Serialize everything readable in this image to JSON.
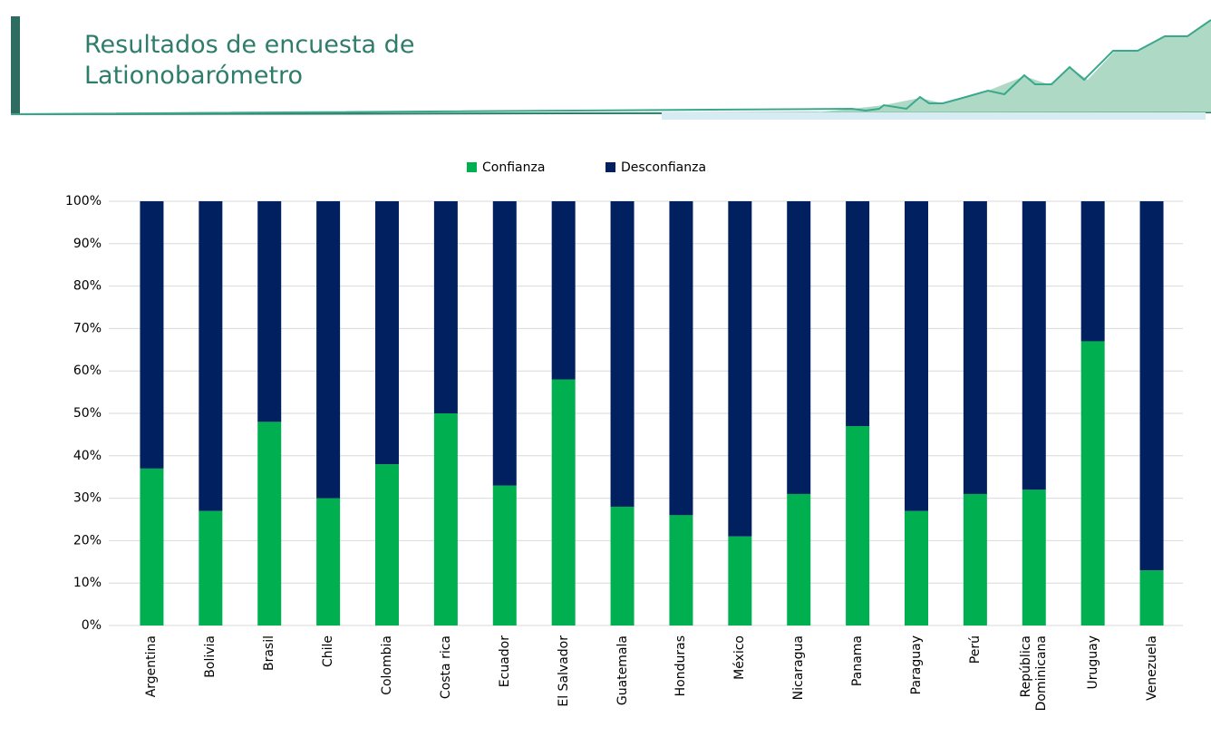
{
  "chart_data": {
    "type": "bar",
    "stacked": true,
    "title": "Resultados de encuesta de Lationobarómetro",
    "categories": [
      "Argentina",
      "Bolivia",
      "Brasil",
      "Chile",
      "Colombia",
      "Costa rica",
      "Ecuador",
      "El Salvador",
      "Guatemala",
      "Honduras",
      "México",
      "Nicaragua",
      "Panama",
      "Paraguay",
      "Perú",
      "República Dominicana",
      "Uruguay",
      "Venezuela"
    ],
    "series": [
      {
        "name": "Confianza",
        "color": "#00b050",
        "values": [
          37,
          27,
          48,
          30,
          38,
          50,
          33,
          58,
          28,
          26,
          21,
          31,
          47,
          27,
          31,
          32,
          67,
          13
        ]
      },
      {
        "name": "Desconfianza",
        "color": "#002060",
        "values": [
          63,
          73,
          52,
          70,
          62,
          50,
          67,
          42,
          72,
          74,
          79,
          69,
          53,
          73,
          69,
          68,
          33,
          87
        ]
      }
    ],
    "ylim": [
      0,
      100
    ],
    "yticks": [
      {
        "value": 0,
        "label": "0%"
      },
      {
        "value": 10,
        "label": "10%"
      },
      {
        "value": 20,
        "label": "20%"
      },
      {
        "value": 30,
        "label": "30%"
      },
      {
        "value": 40,
        "label": "40%"
      },
      {
        "value": 50,
        "label": "50%"
      },
      {
        "value": 60,
        "label": "60%"
      },
      {
        "value": 70,
        "label": "70%"
      },
      {
        "value": 80,
        "label": "80%"
      },
      {
        "value": 90,
        "label": "90%"
      },
      {
        "value": 100,
        "label": "100%"
      }
    ],
    "grid": true,
    "legend": "top"
  }
}
